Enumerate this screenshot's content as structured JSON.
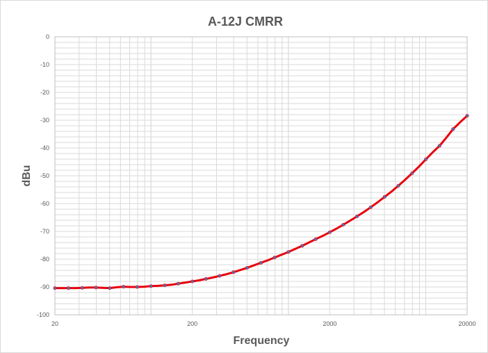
{
  "chart_data": {
    "type": "line",
    "title": "A-12J CMRR",
    "xlabel": "Frequency",
    "ylabel": "dBu",
    "xscale": "log",
    "xlim": [
      20,
      20000
    ],
    "ylim": [
      -100,
      0
    ],
    "x_ticks": [
      "20",
      "200",
      "2000",
      "20000"
    ],
    "y_ticks": [
      "0",
      "-10",
      "-20",
      "-30",
      "-40",
      "-50",
      "-60",
      "-70",
      "-80",
      "-90",
      "-100"
    ],
    "grid": true,
    "legend": "none",
    "colors": {
      "line": "#e8000b",
      "marker": "#5a6fb4",
      "grid": "#d9d9d9",
      "axis_text": "#595959"
    },
    "series": [
      {
        "x": [
          20,
          22.4,
          25.1,
          28.2,
          31.6,
          35.5,
          39.8,
          44.7,
          50.1,
          56.2,
          63.1,
          70.8,
          79.4,
          89.1,
          100,
          112,
          126,
          141,
          158,
          178,
          200,
          224,
          251,
          282,
          316,
          355,
          398,
          447,
          501,
          562,
          631,
          708,
          794,
          891,
          1000,
          1120,
          1260,
          1410,
          1580,
          1780,
          2000,
          2240,
          2510,
          2820,
          3160,
          3550,
          3980,
          4470,
          5010,
          5620,
          6310,
          7080,
          7940,
          8910,
          10000,
          11200,
          12600,
          14100,
          15800,
          17800,
          20000
        ],
        "y": [
          -90.4,
          -90.4,
          -90.4,
          -90.4,
          -90.3,
          -90.2,
          -90.2,
          -90.3,
          -90.4,
          -90.1,
          -89.9,
          -90.0,
          -90.0,
          -89.9,
          -89.7,
          -89.6,
          -89.4,
          -89.2,
          -88.8,
          -88.4,
          -88.0,
          -87.6,
          -87.1,
          -86.6,
          -86.0,
          -85.4,
          -84.7,
          -83.9,
          -83.1,
          -82.2,
          -81.3,
          -80.4,
          -79.4,
          -78.4,
          -77.4,
          -76.3,
          -75.2,
          -74.0,
          -72.8,
          -71.6,
          -70.3,
          -69.0,
          -67.6,
          -66.1,
          -64.6,
          -63.0,
          -61.3,
          -59.5,
          -57.6,
          -55.7,
          -53.6,
          -51.4,
          -49.1,
          -46.7,
          -44.1,
          -41.6,
          -39.2,
          -36.3,
          -33.2,
          -30.7,
          -28.4
        ]
      }
    ]
  }
}
